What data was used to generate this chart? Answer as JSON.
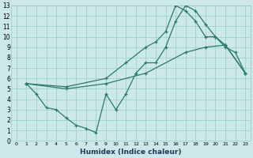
{
  "xlabel": "Humidex (Indice chaleur)",
  "bg_color": "#cce8e8",
  "grid_color": "#99cccc",
  "line_color": "#2a7a6a",
  "xlim": [
    -0.5,
    23.5
  ],
  "ylim": [
    0,
    13
  ],
  "xticks": [
    0,
    1,
    2,
    3,
    4,
    5,
    6,
    7,
    8,
    9,
    10,
    11,
    12,
    13,
    14,
    15,
    16,
    17,
    18,
    19,
    20,
    21,
    22,
    23
  ],
  "yticks": [
    0,
    1,
    2,
    3,
    4,
    5,
    6,
    7,
    8,
    9,
    10,
    11,
    12,
    13
  ],
  "line1_zigzag": {
    "x": [
      1,
      2,
      3,
      4,
      5,
      6,
      7,
      8,
      9,
      10,
      11,
      12,
      13,
      14,
      15,
      16,
      17,
      18,
      19,
      20,
      21,
      22,
      23
    ],
    "y": [
      5.5,
      4.5,
      3.2,
      3.0,
      2.2,
      1.5,
      1.2,
      0.8,
      4.5,
      3.0,
      4.5,
      6.5,
      7.5,
      7.5,
      9.0,
      11.5,
      13.0,
      12.5,
      11.2,
      10.0,
      9.0,
      8.5,
      6.5
    ]
  },
  "line2_upper": {
    "x": [
      1,
      5,
      9,
      11,
      13,
      14,
      15,
      16,
      17,
      18,
      19,
      20,
      21,
      23
    ],
    "y": [
      5.5,
      5.2,
      6.0,
      7.5,
      9.0,
      9.5,
      10.5,
      13.0,
      12.5,
      11.5,
      10.0,
      10.0,
      9.2,
      6.5
    ]
  },
  "line3_lower": {
    "x": [
      1,
      5,
      9,
      13,
      17,
      19,
      21,
      23
    ],
    "y": [
      5.5,
      5.0,
      5.5,
      6.5,
      8.5,
      9.0,
      9.2,
      6.5
    ]
  }
}
